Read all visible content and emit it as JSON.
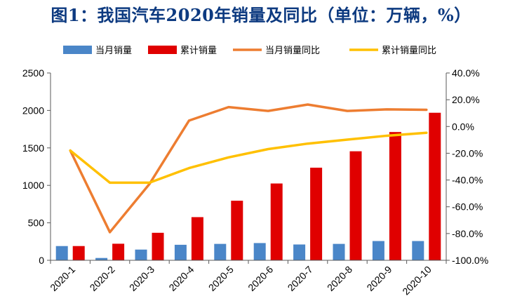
{
  "title": "图1：我国汽车2020年销量及同比（单位：万辆，%）",
  "chart_data": {
    "type": "bar",
    "title": "图1：我国汽车2020年销量及同比（单位：万辆，%）",
    "categories": [
      "2020-1",
      "2020-2",
      "2020-3",
      "2020-4",
      "2020-5",
      "2020-6",
      "2020-7",
      "2020-8",
      "2020-9",
      "2020-10"
    ],
    "left_axis": {
      "range": [
        0,
        2500
      ],
      "ticks": [
        "0",
        "500",
        "1000",
        "1500",
        "2000",
        "2500"
      ]
    },
    "right_axis": {
      "range": [
        -100,
        40
      ],
      "ticks": [
        "-100.0%",
        "-80.0%",
        "-60.0%",
        "-40.0%",
        "-20.0%",
        "0.0%",
        "20.0%",
        "40.0%"
      ]
    },
    "series": [
      {
        "name": "当月销量",
        "kind": "bar",
        "axis": "left",
        "color": "#4a86c8",
        "values": [
          190,
          31,
          143,
          207,
          219,
          230,
          211,
          219,
          257,
          257
        ]
      },
      {
        "name": "累计销量",
        "kind": "bar",
        "axis": "left",
        "color": "#e00000",
        "values": [
          190,
          221,
          367,
          576,
          795,
          1025,
          1236,
          1455,
          1712,
          1969
        ]
      },
      {
        "name": "当月销量同比",
        "kind": "line",
        "axis": "right",
        "color": "#ed7d31",
        "values": [
          -18,
          -79,
          -43,
          4.4,
          14.5,
          11.6,
          16.4,
          11.6,
          12.8,
          12.5
        ]
      },
      {
        "name": "累计销量同比",
        "kind": "line",
        "axis": "right",
        "color": "#ffc000",
        "values": [
          -18,
          -42,
          -42,
          -31.1,
          -23.1,
          -16.9,
          -12.8,
          -9.8,
          -6.9,
          -4.7
        ]
      }
    ],
    "grid": false,
    "legend_position": "top"
  }
}
